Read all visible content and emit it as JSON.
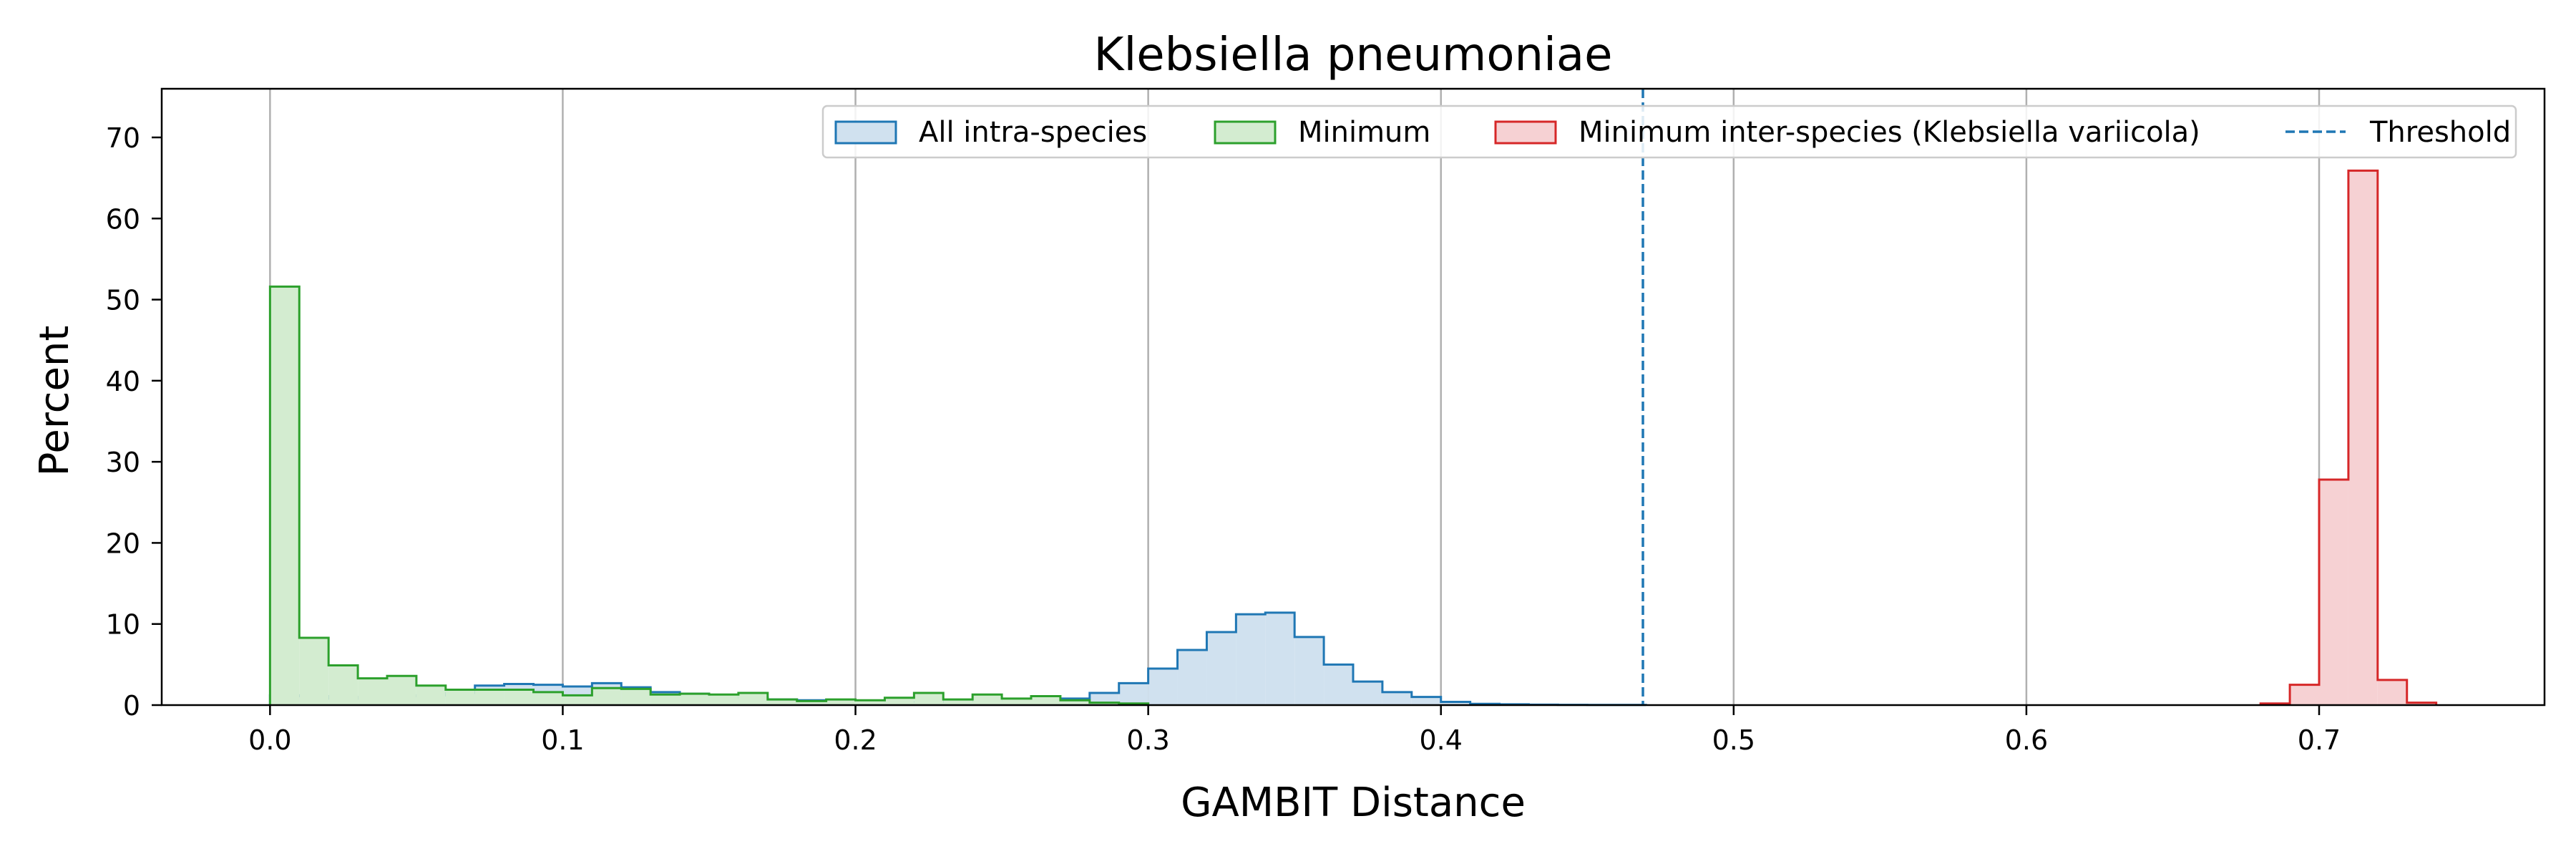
{
  "chart_data": {
    "type": "histogram",
    "title": "Klebsiella pneumoniae",
    "xlabel": "GAMBIT Distance",
    "ylabel": "Percent",
    "xlim": [
      -0.037,
      0.777
    ],
    "ylim": [
      0,
      76
    ],
    "x_ticks": [
      0.0,
      0.1,
      0.2,
      0.3,
      0.4,
      0.5,
      0.6,
      0.7
    ],
    "x_tick_labels": [
      "0.0",
      "0.1",
      "0.2",
      "0.3",
      "0.4",
      "0.5",
      "0.6",
      "0.7"
    ],
    "y_ticks": [
      0,
      10,
      20,
      30,
      40,
      50,
      60,
      70
    ],
    "y_tick_labels": [
      "0",
      "10",
      "20",
      "30",
      "40",
      "50",
      "60",
      "70"
    ],
    "grid": "vertical",
    "legend_position": "top-right",
    "bin_width": 0.01,
    "threshold": {
      "name": "Threshold",
      "x": 0.469,
      "color": "#1f77b4"
    },
    "series": [
      {
        "name": "All intra-species",
        "color": "#1f77b4",
        "fill": "#d0e1ef",
        "bin_start": 0.0,
        "values": [
          1.2,
          1.1,
          0.8,
          1.0,
          1.1,
          1.2,
          1.5,
          2.4,
          2.6,
          2.5,
          2.3,
          2.7,
          2.2,
          1.6,
          1.4,
          1.1,
          0.9,
          0.7,
          0.6,
          0.5,
          0.4,
          0.4,
          0.4,
          0.5,
          0.6,
          0.6,
          0.7,
          0.8,
          1.5,
          2.7,
          4.5,
          6.8,
          9.0,
          11.2,
          11.4,
          8.4,
          5.0,
          2.9,
          1.6,
          1.0,
          0.4,
          0.15,
          0.1,
          0.05,
          0.03,
          0.02,
          0.02
        ]
      },
      {
        "name": "Minimum",
        "color": "#2ca02c",
        "fill": "#d3ecd0",
        "bin_start": 0.0,
        "values": [
          51.6,
          8.3,
          4.9,
          3.3,
          3.6,
          2.4,
          1.9,
          1.9,
          1.9,
          1.6,
          1.2,
          2.1,
          2.0,
          1.3,
          1.4,
          1.3,
          1.5,
          0.7,
          0.5,
          0.7,
          0.6,
          0.9,
          1.5,
          0.7,
          1.3,
          0.8,
          1.1,
          0.6,
          0.3,
          0.2
        ]
      },
      {
        "name": "Minimum inter-species (Klebsiella variicola)",
        "color": "#d62728",
        "fill": "#f6d1d3",
        "bin_start": 0.68,
        "values": [
          0.2,
          2.5,
          27.8,
          65.9,
          3.1,
          0.3
        ]
      }
    ]
  }
}
